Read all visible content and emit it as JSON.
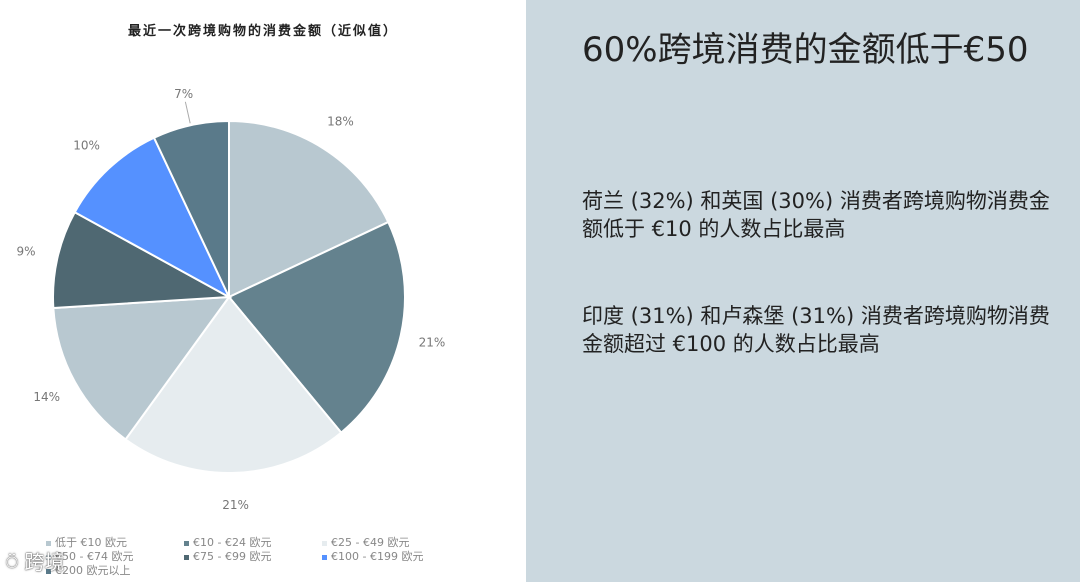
{
  "chart_data": {
    "type": "pie",
    "title": "最近一次跨境购物的消费金额（近似值）",
    "slices": [
      {
        "label": "低于 €10 欧元",
        "value": 18,
        "display": "18%",
        "color": "#b8c8d0"
      },
      {
        "label": "€10 - €24 欧元",
        "value": 21,
        "display": "21%",
        "color": "#64828e"
      },
      {
        "label": "€25 - €49 欧元",
        "value": 21,
        "display": "21%",
        "color": "#e6ecef"
      },
      {
        "label": "€50 - €74 欧元",
        "value": 14,
        "display": "14%",
        "color": "#b8c8d0"
      },
      {
        "label": "€75 - €99 欧元",
        "value": 9,
        "display": "9%",
        "color": "#4f6872"
      },
      {
        "label": "€100 - €199 欧元",
        "value": 10,
        "display": "10%",
        "color": "#5591ff"
      },
      {
        "label": "€200 欧元以上",
        "value": 7,
        "display": "7%",
        "color": "#5a7a8a"
      }
    ]
  },
  "headline": "60%跨境消费的金额低于€50",
  "paragraphs": [
    "荷兰 (32%) 和英国 (30%) 消费者跨境购物消费金额低于 €10 的人数占比最高",
    "印度 (31%) 和卢森堡 (31%) 消费者跨境购物消费金额超过 €100 的人数占比最高"
  ],
  "watermark": "跨境"
}
